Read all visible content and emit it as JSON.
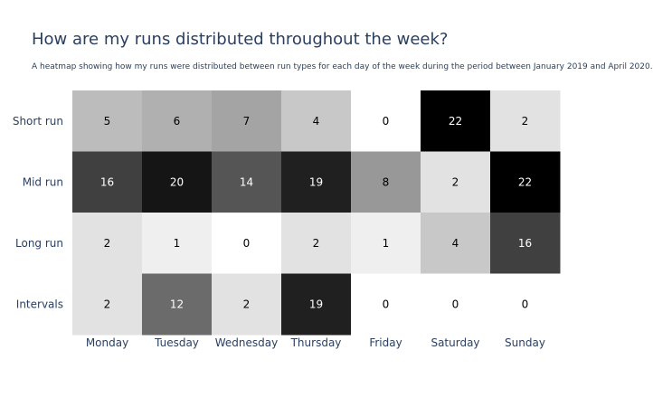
{
  "header": {
    "title": "How are my runs distributed throughout the week?",
    "subtitle": "A heatmap showing how my runs were distributed between run types for each day of the week during the period between January 2019 and April 2020."
  },
  "colors": {
    "low": "#ffffff",
    "high": "#000000",
    "tick_text": "#2a3f5f"
  },
  "chart_data": {
    "type": "heatmap",
    "title": "How are my runs distributed throughout the week?",
    "subtitle": "A heatmap showing how my runs were distributed between run types for each day of the week during the period between January 2019 and April 2020.",
    "x": [
      "Monday",
      "Tuesday",
      "Wednesday",
      "Thursday",
      "Friday",
      "Saturday",
      "Sunday"
    ],
    "y": [
      "Short run",
      "Mid run",
      "Long run",
      "Intervals"
    ],
    "z": [
      [
        5,
        6,
        7,
        4,
        0,
        22,
        2
      ],
      [
        16,
        20,
        14,
        19,
        8,
        2,
        22
      ],
      [
        2,
        1,
        0,
        2,
        1,
        4,
        16
      ],
      [
        2,
        12,
        2,
        19,
        0,
        0,
        0
      ]
    ],
    "colorscale": "greys",
    "zmin": 0,
    "zmax": 22,
    "show_values": true,
    "colorbar": false
  }
}
